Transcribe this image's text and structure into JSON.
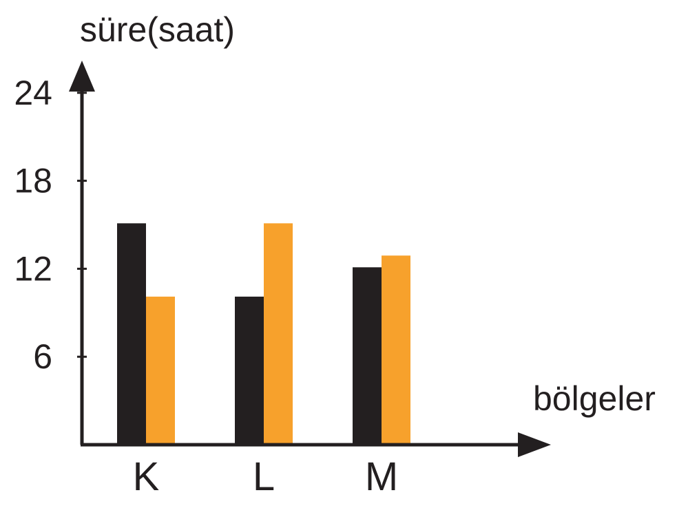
{
  "chart_data": {
    "type": "bar",
    "ylabel": "süre(saat)",
    "xlabel": "bölgeler",
    "categories": [
      "K",
      "L",
      "M"
    ],
    "y_ticks": [
      "6",
      "12",
      "18",
      "24"
    ],
    "ylim": [
      0,
      24
    ],
    "grid": false,
    "legend": "none",
    "series": [
      {
        "color": "#231f20",
        "values": [
          15.1,
          10.1,
          12.1
        ]
      },
      {
        "color": "#f7a12c",
        "values": [
          10.1,
          15.1,
          12.9
        ]
      }
    ]
  }
}
